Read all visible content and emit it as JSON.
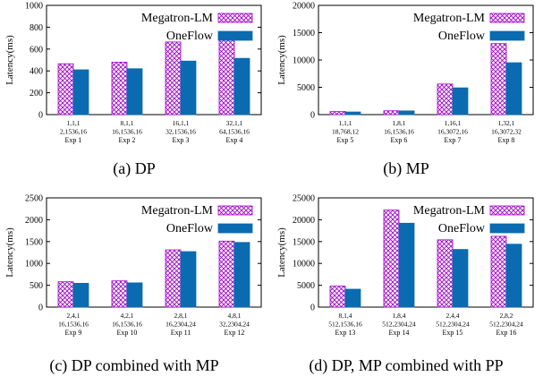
{
  "colors": {
    "megatron_fill": "#ffffff",
    "megatron_pattern": "#a000c8",
    "oneflow": "#0a6bb0",
    "axis": "#000000"
  },
  "panels": [
    {
      "caption": "(a) DP",
      "chart_data": {
        "type": "bar",
        "ylabel": "Latency(ms)",
        "ylim": [
          0,
          1000
        ],
        "yticks": [
          "0",
          "200",
          "400",
          "600",
          "800",
          "1000"
        ],
        "categories": [
          [
            "1,1,1",
            "2,1536,16",
            "Exp 1"
          ],
          [
            "8,1,1",
            "16,1536,16",
            "Exp 2"
          ],
          [
            "16,1,1",
            "32,1536,16",
            "Exp 3"
          ],
          [
            "32,1,1",
            "64,1536,16",
            "Exp 4"
          ]
        ],
        "series": [
          {
            "name": "Megatron-LM",
            "values": [
              465,
              480,
              665,
              685
            ]
          },
          {
            "name": "OneFlow",
            "values": [
              410,
              420,
              490,
              515
            ]
          }
        ],
        "legend": "top-right"
      }
    },
    {
      "caption": "(b) MP",
      "chart_data": {
        "type": "bar",
        "ylabel": "Latency(ms)",
        "ylim": [
          0,
          20000
        ],
        "yticks": [
          "0",
          "5000",
          "10000",
          "15000",
          "20000"
        ],
        "categories": [
          [
            "1,1,1",
            "18,768,12",
            "Exp 5"
          ],
          [
            "1,8,1",
            "16,1536,16",
            "Exp 6"
          ],
          [
            "1,16,1",
            "16,3072,16",
            "Exp 7"
          ],
          [
            "1,32,1",
            "16,3072,32",
            "Exp 8"
          ]
        ],
        "series": [
          {
            "name": "Megatron-LM",
            "values": [
              550,
              700,
              5600,
              13000
            ]
          },
          {
            "name": "OneFlow",
            "values": [
              480,
              680,
              4900,
              9500
            ]
          }
        ],
        "legend": "top-right"
      }
    },
    {
      "caption": "(c) DP combined with MP",
      "chart_data": {
        "type": "bar",
        "ylabel": "Latency(ms)",
        "ylim": [
          0,
          2500
        ],
        "yticks": [
          "0",
          "500",
          "1000",
          "1500",
          "2000",
          "2500"
        ],
        "categories": [
          [
            "2,4,1",
            "16,1536,16",
            "Exp 9"
          ],
          [
            "4,2,1",
            "16,1536,16",
            "Exp 10"
          ],
          [
            "2,8,1",
            "16,2304,24",
            "Exp 11"
          ],
          [
            "4,8,1",
            "32,2304,24",
            "Exp 12"
          ]
        ],
        "series": [
          {
            "name": "Megatron-LM",
            "values": [
              580,
              600,
              1310,
              1510
            ]
          },
          {
            "name": "OneFlow",
            "values": [
              545,
              555,
              1270,
              1480
            ]
          }
        ],
        "legend": "top-right"
      }
    },
    {
      "caption": "(d) DP, MP combined with PP",
      "chart_data": {
        "type": "bar",
        "ylabel": "Latency(ms)",
        "ylim": [
          0,
          25000
        ],
        "yticks": [
          "0",
          "5000",
          "10000",
          "15000",
          "20000",
          "25000"
        ],
        "categories": [
          [
            "8,1,4",
            "512,1536,16",
            "Exp 13"
          ],
          [
            "1,8,4",
            "512,2304,24",
            "Exp 14"
          ],
          [
            "2,4,4",
            "512,2304,24",
            "Exp 15"
          ],
          [
            "2,8,2",
            "512,2304,24",
            "Exp 16"
          ]
        ],
        "series": [
          {
            "name": "Megatron-LM",
            "values": [
              4800,
              22200,
              15400,
              16200
            ]
          },
          {
            "name": "OneFlow",
            "values": [
              4100,
              19200,
              13200,
              14400
            ]
          }
        ],
        "legend": "top-right"
      }
    }
  ]
}
